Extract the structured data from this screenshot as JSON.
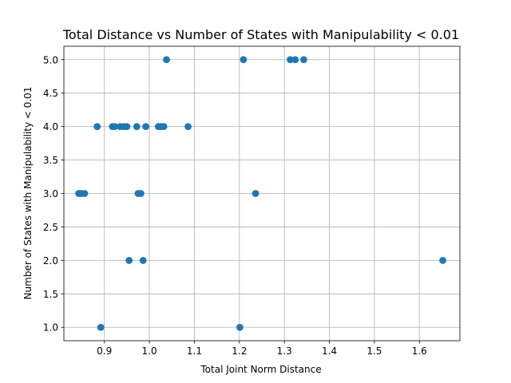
{
  "chart_data": {
    "type": "scatter",
    "title": "Total Distance vs Number of States with Manipulability < 0.01",
    "xlabel": "Total Joint Norm Distance",
    "ylabel": "Number of States with Manipulability < 0.01",
    "xlim": [
      0.81,
      1.69
    ],
    "ylim": [
      0.8,
      5.2
    ],
    "xticks": [
      0.9,
      1.0,
      1.1,
      1.2,
      1.3,
      1.4,
      1.5,
      1.6
    ],
    "xtick_labels": [
      "0.9",
      "1.0",
      "1.1",
      "1.2",
      "1.3",
      "1.4",
      "1.5",
      "1.6"
    ],
    "yticks": [
      1.0,
      1.5,
      2.0,
      2.5,
      3.0,
      3.5,
      4.0,
      4.5,
      5.0
    ],
    "ytick_labels": [
      "1.0",
      "1.5",
      "2.0",
      "2.5",
      "3.0",
      "3.5",
      "4.0",
      "4.5",
      "5.0"
    ],
    "grid": true,
    "marker_color": "#1f77b4",
    "series": [
      {
        "points": [
          {
            "x": 0.843,
            "y": 3
          },
          {
            "x": 0.848,
            "y": 3
          },
          {
            "x": 0.856,
            "y": 3
          },
          {
            "x": 0.884,
            "y": 4
          },
          {
            "x": 0.892,
            "y": 1
          },
          {
            "x": 0.918,
            "y": 4
          },
          {
            "x": 0.923,
            "y": 4
          },
          {
            "x": 0.935,
            "y": 4
          },
          {
            "x": 0.943,
            "y": 4
          },
          {
            "x": 0.95,
            "y": 4
          },
          {
            "x": 0.955,
            "y": 2
          },
          {
            "x": 0.972,
            "y": 4
          },
          {
            "x": 0.975,
            "y": 3
          },
          {
            "x": 0.981,
            "y": 3
          },
          {
            "x": 0.986,
            "y": 2
          },
          {
            "x": 0.992,
            "y": 4
          },
          {
            "x": 1.02,
            "y": 4
          },
          {
            "x": 1.026,
            "y": 4
          },
          {
            "x": 1.032,
            "y": 4
          },
          {
            "x": 1.038,
            "y": 5
          },
          {
            "x": 1.086,
            "y": 4
          },
          {
            "x": 1.201,
            "y": 1
          },
          {
            "x": 1.209,
            "y": 5
          },
          {
            "x": 1.236,
            "y": 3
          },
          {
            "x": 1.313,
            "y": 5
          },
          {
            "x": 1.324,
            "y": 5
          },
          {
            "x": 1.343,
            "y": 5
          },
          {
            "x": 1.652,
            "y": 2
          }
        ]
      }
    ]
  }
}
